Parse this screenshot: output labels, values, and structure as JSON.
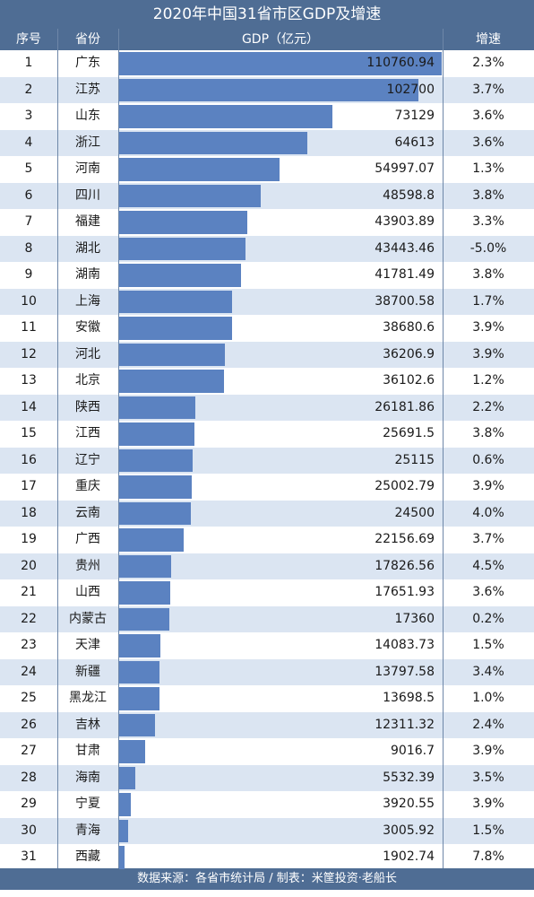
{
  "title": "2020年中国31省市区GDP及增速",
  "headers": {
    "rank": "序号",
    "province": "省份",
    "gdp": "GDP（亿元）",
    "growth": "增速"
  },
  "footer": "数据来源：各省市统计局 / 制表：米筐投资·老船长",
  "colors": {
    "header_bg": "#4f6d94",
    "bar": "#5b82c1",
    "stripe": "#dbe5f2"
  },
  "chart_data": {
    "type": "bar",
    "orientation": "horizontal",
    "title": "2020年中国31省市区GDP及增速",
    "xlabel": "GDP（亿元）",
    "ylabel": "",
    "xlim": [
      0,
      110760.94
    ],
    "grid": false,
    "legend": "none",
    "rows": [
      {
        "rank": "1",
        "province": "广东",
        "gdp": 110760.94,
        "gdp_label": "110760.94",
        "growth": "2.3%"
      },
      {
        "rank": "2",
        "province": "江苏",
        "gdp": 102700,
        "gdp_label": "102700",
        "growth": "3.7%"
      },
      {
        "rank": "3",
        "province": "山东",
        "gdp": 73129,
        "gdp_label": "73129",
        "growth": "3.6%"
      },
      {
        "rank": "4",
        "province": "浙江",
        "gdp": 64613,
        "gdp_label": "64613",
        "growth": "3.6%"
      },
      {
        "rank": "5",
        "province": "河南",
        "gdp": 54997.07,
        "gdp_label": "54997.07",
        "growth": "1.3%"
      },
      {
        "rank": "6",
        "province": "四川",
        "gdp": 48598.8,
        "gdp_label": "48598.8",
        "growth": "3.8%"
      },
      {
        "rank": "7",
        "province": "福建",
        "gdp": 43903.89,
        "gdp_label": "43903.89",
        "growth": "3.3%"
      },
      {
        "rank": "8",
        "province": "湖北",
        "gdp": 43443.46,
        "gdp_label": "43443.46",
        "growth": "-5.0%"
      },
      {
        "rank": "9",
        "province": "湖南",
        "gdp": 41781.49,
        "gdp_label": "41781.49",
        "growth": "3.8%"
      },
      {
        "rank": "10",
        "province": "上海",
        "gdp": 38700.58,
        "gdp_label": "38700.58",
        "growth": "1.7%"
      },
      {
        "rank": "11",
        "province": "安徽",
        "gdp": 38680.6,
        "gdp_label": "38680.6",
        "growth": "3.9%"
      },
      {
        "rank": "12",
        "province": "河北",
        "gdp": 36206.9,
        "gdp_label": "36206.9",
        "growth": "3.9%"
      },
      {
        "rank": "13",
        "province": "北京",
        "gdp": 36102.6,
        "gdp_label": "36102.6",
        "growth": "1.2%"
      },
      {
        "rank": "14",
        "province": "陕西",
        "gdp": 26181.86,
        "gdp_label": "26181.86",
        "growth": "2.2%"
      },
      {
        "rank": "15",
        "province": "江西",
        "gdp": 25691.5,
        "gdp_label": "25691.5",
        "growth": "3.8%"
      },
      {
        "rank": "16",
        "province": "辽宁",
        "gdp": 25115,
        "gdp_label": "25115",
        "growth": "0.6%"
      },
      {
        "rank": "17",
        "province": "重庆",
        "gdp": 25002.79,
        "gdp_label": "25002.79",
        "growth": "3.9%"
      },
      {
        "rank": "18",
        "province": "云南",
        "gdp": 24500,
        "gdp_label": "24500",
        "growth": "4.0%"
      },
      {
        "rank": "19",
        "province": "广西",
        "gdp": 22156.69,
        "gdp_label": "22156.69",
        "growth": "3.7%"
      },
      {
        "rank": "20",
        "province": "贵州",
        "gdp": 17826.56,
        "gdp_label": "17826.56",
        "growth": "4.5%"
      },
      {
        "rank": "21",
        "province": "山西",
        "gdp": 17651.93,
        "gdp_label": "17651.93",
        "growth": "3.6%"
      },
      {
        "rank": "22",
        "province": "内蒙古",
        "gdp": 17360,
        "gdp_label": "17360",
        "growth": "0.2%"
      },
      {
        "rank": "23",
        "province": "天津",
        "gdp": 14083.73,
        "gdp_label": "14083.73",
        "growth": "1.5%"
      },
      {
        "rank": "24",
        "province": "新疆",
        "gdp": 13797.58,
        "gdp_label": "13797.58",
        "growth": "3.4%"
      },
      {
        "rank": "25",
        "province": "黑龙江",
        "gdp": 13698.5,
        "gdp_label": "13698.5",
        "growth": "1.0%"
      },
      {
        "rank": "26",
        "province": "吉林",
        "gdp": 12311.32,
        "gdp_label": "12311.32",
        "growth": "2.4%"
      },
      {
        "rank": "27",
        "province": "甘肃",
        "gdp": 9016.7,
        "gdp_label": "9016.7",
        "growth": "3.9%"
      },
      {
        "rank": "28",
        "province": "海南",
        "gdp": 5532.39,
        "gdp_label": "5532.39",
        "growth": "3.5%"
      },
      {
        "rank": "29",
        "province": "宁夏",
        "gdp": 3920.55,
        "gdp_label": "3920.55",
        "growth": "3.9%"
      },
      {
        "rank": "30",
        "province": "青海",
        "gdp": 3005.92,
        "gdp_label": "3005.92",
        "growth": "1.5%"
      },
      {
        "rank": "31",
        "province": "西藏",
        "gdp": 1902.74,
        "gdp_label": "1902.74",
        "growth": "7.8%"
      }
    ]
  }
}
